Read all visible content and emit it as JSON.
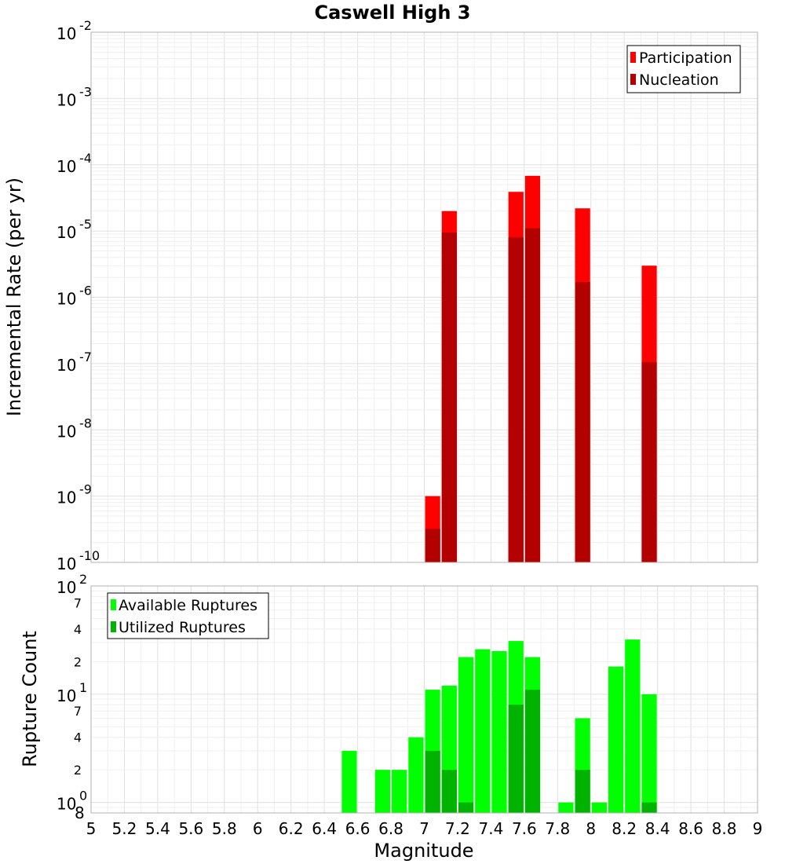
{
  "chart_data": [
    {
      "type": "bar",
      "title": "Caswell High 3",
      "ylabel": "Incremental Rate (per yr)",
      "xlabel": "",
      "xlim": [
        5,
        9
      ],
      "ylim": [
        1e-10,
        0.01
      ],
      "yscale": "log",
      "grid": true,
      "legend_position": "top-right",
      "bar_width": 0.1,
      "series": [
        {
          "name": "Participation",
          "color": "#ff0000",
          "x": [
            7.05,
            7.15,
            7.55,
            7.65,
            7.95,
            8.35
          ],
          "values": [
            1e-09,
            2e-05,
            3.9e-05,
            6.8e-05,
            2.2e-05,
            3e-06
          ]
        },
        {
          "name": "Nucleation",
          "color": "#b30000",
          "x": [
            7.05,
            7.15,
            7.55,
            7.65,
            7.95,
            8.35
          ],
          "values": [
            3.2e-10,
            9.5e-06,
            8e-06,
            1.1e-05,
            1.7e-06,
            1.05e-07
          ]
        }
      ],
      "y_ticks": [
        {
          "base": "10",
          "exp": "-10"
        },
        {
          "base": "10",
          "exp": "-9"
        },
        {
          "base": "10",
          "exp": "-8"
        },
        {
          "base": "10",
          "exp": "-7"
        },
        {
          "base": "10",
          "exp": "-6"
        },
        {
          "base": "10",
          "exp": "-5"
        },
        {
          "base": "10",
          "exp": "-4"
        },
        {
          "base": "10",
          "exp": "-3"
        },
        {
          "base": "10",
          "exp": "-2"
        }
      ]
    },
    {
      "type": "bar",
      "title": "",
      "ylabel": "Rupture Count",
      "xlabel": "Magnitude",
      "xlim": [
        5,
        9
      ],
      "ylim": [
        0.8,
        100
      ],
      "yscale": "log",
      "grid": true,
      "legend_position": "top-left",
      "bar_width": 0.1,
      "series": [
        {
          "name": "Available Ruptures",
          "color": "#00ff00",
          "x": [
            6.55,
            6.75,
            6.85,
            6.95,
            7.05,
            7.15,
            7.25,
            7.35,
            7.45,
            7.55,
            7.65,
            7.85,
            7.95,
            8.05,
            8.15,
            8.25,
            8.35
          ],
          "values": [
            3,
            2,
            2,
            4,
            11,
            12,
            22,
            26,
            25,
            31,
            22,
            1,
            6,
            1,
            18,
            32,
            10
          ]
        },
        {
          "name": "Utilized Ruptures",
          "color": "#00b300",
          "x": [
            7.05,
            7.15,
            7.25,
            7.55,
            7.65,
            7.95,
            8.35
          ],
          "values": [
            3,
            2,
            1,
            8,
            11,
            2,
            1
          ]
        }
      ],
      "y_tick_labels": [
        {
          "base": "10",
          "exp": "0",
          "extra": "8"
        },
        {
          "base": "10",
          "exp": "1"
        },
        {
          "base": "10",
          "exp": "2"
        }
      ],
      "y_minor_labels": [
        "2",
        "4",
        "7"
      ],
      "x_ticks": [
        "5",
        "5.2",
        "5.4",
        "5.6",
        "5.8",
        "6",
        "6.2",
        "6.4",
        "6.6",
        "6.8",
        "7",
        "7.2",
        "7.4",
        "7.6",
        "7.8",
        "8",
        "8.2",
        "8.4",
        "8.6",
        "8.8",
        "9"
      ]
    }
  ]
}
